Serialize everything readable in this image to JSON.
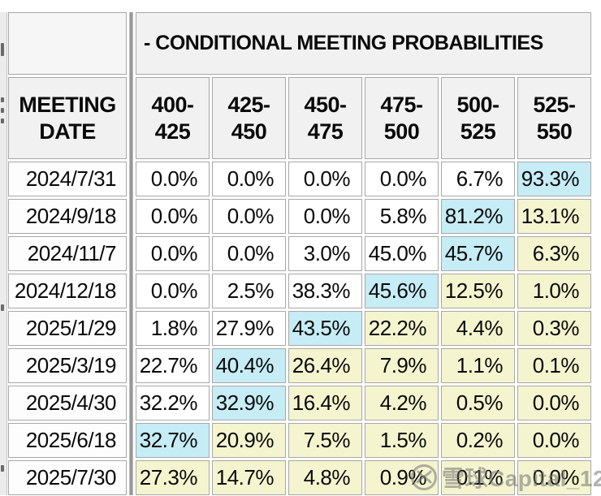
{
  "chart_data": {
    "type": "table",
    "title": "- CONDITIONAL MEETING PROBABILITIES",
    "row_header": {
      "line1": "MEETING",
      "line2": "DATE"
    },
    "columns": [
      "400-425",
      "425-450",
      "450-475",
      "475-500",
      "500-525",
      "525-550"
    ],
    "col_headers": [
      {
        "line1": "400-",
        "line2": "425"
      },
      {
        "line1": "425-",
        "line2": "450"
      },
      {
        "line1": "450-",
        "line2": "475"
      },
      {
        "line1": "475-",
        "line2": "500"
      },
      {
        "line1": "500-",
        "line2": "525"
      },
      {
        "line1": "525-",
        "line2": "550"
      }
    ],
    "rows": [
      {
        "date": "2024/7/31",
        "values": [
          "0.0%",
          "0.0%",
          "0.0%",
          "0.0%",
          "6.7%",
          "93.3%"
        ],
        "highlights": [
          "none",
          "none",
          "none",
          "none",
          "none",
          "cyan"
        ]
      },
      {
        "date": "2024/9/18",
        "values": [
          "0.0%",
          "0.0%",
          "0.0%",
          "5.8%",
          "81.2%",
          "13.1%"
        ],
        "highlights": [
          "none",
          "none",
          "none",
          "none",
          "cyan",
          "yellow"
        ]
      },
      {
        "date": "2024/11/7",
        "values": [
          "0.0%",
          "0.0%",
          "3.0%",
          "45.0%",
          "45.7%",
          "6.3%"
        ],
        "highlights": [
          "none",
          "none",
          "none",
          "none",
          "cyan",
          "yellow"
        ]
      },
      {
        "date": "2024/12/18",
        "values": [
          "0.0%",
          "2.5%",
          "38.3%",
          "45.6%",
          "12.5%",
          "1.0%"
        ],
        "highlights": [
          "none",
          "none",
          "none",
          "cyan",
          "yellow",
          "yellow"
        ]
      },
      {
        "date": "2025/1/29",
        "values": [
          "1.8%",
          "27.9%",
          "43.5%",
          "22.2%",
          "4.4%",
          "0.3%"
        ],
        "highlights": [
          "none",
          "none",
          "cyan",
          "yellow",
          "yellow",
          "yellow"
        ]
      },
      {
        "date": "2025/3/19",
        "values": [
          "22.7%",
          "40.4%",
          "26.4%",
          "7.9%",
          "1.1%",
          "0.1%"
        ],
        "highlights": [
          "none",
          "cyan",
          "yellow",
          "yellow",
          "yellow",
          "yellow"
        ]
      },
      {
        "date": "2025/4/30",
        "values": [
          "32.2%",
          "32.9%",
          "16.4%",
          "4.2%",
          "0.5%",
          "0.0%"
        ],
        "highlights": [
          "none",
          "cyan",
          "yellow",
          "yellow",
          "yellow",
          "yellow"
        ]
      },
      {
        "date": "2025/6/18",
        "values": [
          "32.7%",
          "20.9%",
          "7.5%",
          "1.5%",
          "0.2%",
          "0.0%"
        ],
        "highlights": [
          "cyan",
          "yellow",
          "yellow",
          "yellow",
          "yellow",
          "yellow"
        ]
      },
      {
        "date": "2025/7/30",
        "values": [
          "27.3%",
          "14.7%",
          "4.8%",
          "0.9%",
          "0.1%",
          "0.0%"
        ],
        "highlights": [
          "yellow",
          "yellow",
          "yellow",
          "yellow",
          "yellow",
          "yellow"
        ]
      }
    ]
  },
  "colors": {
    "cyan": "#c6ecf5",
    "yellow": "#f4f4cf",
    "header_bg": "#f1f1f1",
    "border": "#a8a8a8",
    "divider": "#979797"
  },
  "watermark": {
    "text": "雪球Capital_12"
  }
}
